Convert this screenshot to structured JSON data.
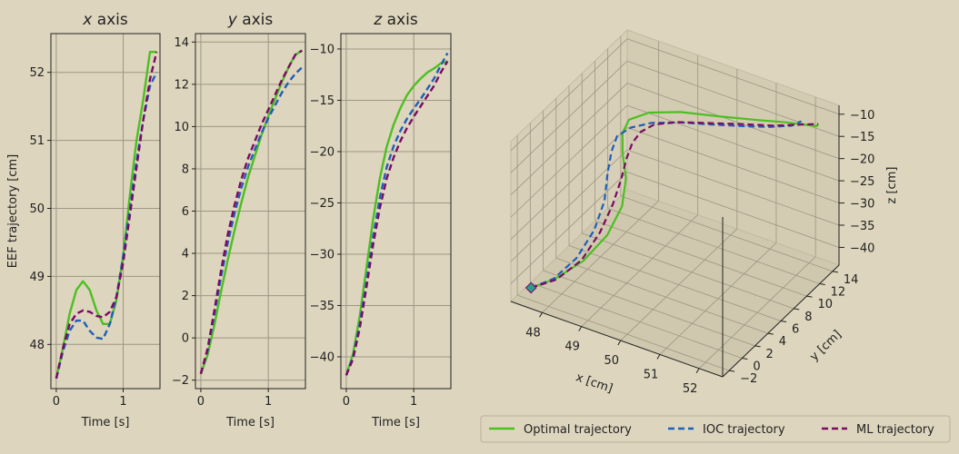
{
  "colors": {
    "background": "#ddd5bd",
    "panel": "#ddd5bd",
    "grid": "#9d9683",
    "optimal": "#4dbf21",
    "ioc": "#1e5fb8",
    "ml": "#7a0a62"
  },
  "legend": {
    "placement": "bottom-right",
    "items": [
      {
        "key": "optimal",
        "label": "Optimal trajectory",
        "style": "solid"
      },
      {
        "key": "ioc",
        "label": "IOC trajectory",
        "style": "dashed"
      },
      {
        "key": "ml",
        "label": "ML trajectory",
        "style": "dashed"
      }
    ]
  },
  "chart_data": [
    {
      "type": "line",
      "title_var": "x",
      "title_rest": " axis",
      "xlabel": "Time [s]",
      "ylabel": "EEF trajectory [cm]",
      "xlim": [
        -0.08,
        1.55
      ],
      "ylim": [
        47.35,
        52.57
      ],
      "xticks": [
        0,
        1
      ],
      "yticks": [
        48,
        49,
        50,
        51,
        52
      ],
      "grid": true,
      "series": [
        {
          "key": "optimal",
          "x": [
            0,
            0.1,
            0.2,
            0.3,
            0.4,
            0.5,
            0.6,
            0.7,
            0.8,
            0.9,
            1.0,
            1.1,
            1.2,
            1.3,
            1.4,
            1.5
          ],
          "y": [
            47.5,
            47.95,
            48.45,
            48.8,
            48.93,
            48.8,
            48.5,
            48.3,
            48.3,
            48.65,
            49.3,
            50.2,
            51.0,
            51.6,
            52.3,
            52.3
          ]
        },
        {
          "key": "ioc",
          "x": [
            0,
            0.1,
            0.2,
            0.3,
            0.4,
            0.5,
            0.6,
            0.7,
            0.8,
            0.9,
            1.0,
            1.1,
            1.2,
            1.3,
            1.4,
            1.5
          ],
          "y": [
            47.5,
            47.9,
            48.2,
            48.35,
            48.35,
            48.2,
            48.1,
            48.08,
            48.3,
            48.7,
            49.3,
            50.0,
            50.7,
            51.3,
            51.8,
            52.0
          ]
        },
        {
          "key": "ml",
          "x": [
            0,
            0.1,
            0.2,
            0.3,
            0.4,
            0.5,
            0.6,
            0.7,
            0.8,
            0.9,
            1.0,
            1.1,
            1.2,
            1.3,
            1.4,
            1.5
          ],
          "y": [
            47.5,
            47.95,
            48.3,
            48.45,
            48.5,
            48.48,
            48.42,
            48.4,
            48.48,
            48.7,
            49.2,
            49.9,
            50.6,
            51.3,
            51.9,
            52.3
          ]
        }
      ]
    },
    {
      "type": "line",
      "title_var": "y",
      "title_rest": " axis",
      "xlabel": "Time [s]",
      "ylabel": "",
      "xlim": [
        -0.08,
        1.55
      ],
      "ylim": [
        -2.4,
        14.4
      ],
      "xticks": [
        0,
        1
      ],
      "yticks": [
        -2,
        0,
        2,
        4,
        6,
        8,
        10,
        12,
        14
      ],
      "grid": true,
      "series": [
        {
          "key": "optimal",
          "x": [
            0,
            0.1,
            0.2,
            0.3,
            0.4,
            0.5,
            0.6,
            0.7,
            0.8,
            0.9,
            1.0,
            1.1,
            1.2,
            1.3,
            1.4,
            1.5
          ],
          "y": [
            -1.7,
            -0.8,
            0.6,
            2.2,
            3.7,
            5.1,
            6.4,
            7.6,
            8.6,
            9.6,
            10.5,
            11.3,
            12.1,
            12.8,
            13.4,
            13.6
          ]
        },
        {
          "key": "ioc",
          "x": [
            0,
            0.1,
            0.2,
            0.3,
            0.4,
            0.5,
            0.6,
            0.7,
            0.8,
            0.9,
            1.0,
            1.1,
            1.2,
            1.3,
            1.4,
            1.5
          ],
          "y": [
            -1.7,
            -0.6,
            1.1,
            2.9,
            4.5,
            5.9,
            7.1,
            8.1,
            8.9,
            9.7,
            10.4,
            11.0,
            11.6,
            12.1,
            12.5,
            12.8
          ]
        },
        {
          "key": "ml",
          "x": [
            0,
            0.1,
            0.2,
            0.3,
            0.4,
            0.5,
            0.6,
            0.7,
            0.8,
            0.9,
            1.0,
            1.1,
            1.2,
            1.3,
            1.4,
            1.5
          ],
          "y": [
            -1.7,
            -0.5,
            1.3,
            3.2,
            4.9,
            6.3,
            7.5,
            8.5,
            9.3,
            10.1,
            10.8,
            11.5,
            12.2,
            12.8,
            13.4,
            13.6
          ]
        }
      ]
    },
    {
      "type": "line",
      "title_var": "z",
      "title_rest": " axis",
      "xlabel": "Time [s]",
      "ylabel": "",
      "xlim": [
        -0.08,
        1.55
      ],
      "ylim": [
        -43.1,
        -8.5
      ],
      "xticks": [
        0,
        1
      ],
      "yticks": [
        -40,
        -35,
        -30,
        -25,
        -20,
        -15,
        -10
      ],
      "grid": true,
      "series": [
        {
          "key": "optimal",
          "x": [
            0,
            0.1,
            0.2,
            0.3,
            0.4,
            0.5,
            0.6,
            0.7,
            0.8,
            0.9,
            1.0,
            1.1,
            1.2,
            1.3,
            1.4,
            1.5
          ],
          "y": [
            -41.8,
            -39.7,
            -36.0,
            -31.3,
            -26.5,
            -22.5,
            -19.5,
            -17.4,
            -15.8,
            -14.5,
            -13.6,
            -12.9,
            -12.3,
            -11.9,
            -11.4,
            -11.2
          ]
        },
        {
          "key": "ioc",
          "x": [
            0,
            0.1,
            0.2,
            0.3,
            0.4,
            0.5,
            0.6,
            0.7,
            0.8,
            0.9,
            1.0,
            1.1,
            1.2,
            1.3,
            1.4,
            1.5
          ],
          "y": [
            -41.8,
            -40.0,
            -36.8,
            -32.6,
            -28.2,
            -24.4,
            -21.5,
            -19.5,
            -18.0,
            -16.8,
            -15.8,
            -14.9,
            -13.9,
            -12.9,
            -11.6,
            -10.4
          ]
        },
        {
          "key": "ml",
          "x": [
            0,
            0.1,
            0.2,
            0.3,
            0.4,
            0.5,
            0.6,
            0.7,
            0.8,
            0.9,
            1.0,
            1.1,
            1.2,
            1.3,
            1.4,
            1.5
          ],
          "y": [
            -41.8,
            -40.2,
            -37.2,
            -33.2,
            -29.0,
            -25.4,
            -22.6,
            -20.6,
            -19.0,
            -17.7,
            -16.6,
            -15.6,
            -14.6,
            -13.6,
            -12.3,
            -11.2
          ]
        }
      ]
    },
    {
      "type": "line3d",
      "xlabel": "x [cm]",
      "ylabel": "y [cm]",
      "zlabel": "z [cm]",
      "xticks": [
        48,
        49,
        50,
        51,
        52
      ],
      "yticks": [
        -2,
        0,
        2,
        4,
        6,
        8,
        10,
        12,
        14
      ],
      "zticks": [
        -10,
        -15,
        -20,
        -25,
        -30,
        -35,
        -40
      ],
      "grid": true,
      "start_marker": {
        "x": 47.5,
        "y": -1.7,
        "z": -41.8
      },
      "series": [
        {
          "key": "optimal",
          "x": [
            47.5,
            47.95,
            48.45,
            48.8,
            48.93,
            48.8,
            48.5,
            48.3,
            48.3,
            48.65,
            49.3,
            50.2,
            51.0,
            51.6,
            52.3,
            52.3
          ],
          "y": [
            -1.7,
            -0.8,
            0.6,
            2.2,
            3.7,
            5.1,
            6.4,
            7.6,
            8.6,
            9.6,
            10.5,
            11.3,
            12.1,
            12.8,
            13.4,
            13.6
          ],
          "z": [
            -41.8,
            -39.7,
            -36.0,
            -31.3,
            -26.5,
            -22.5,
            -19.5,
            -17.4,
            -15.8,
            -14.5,
            -13.6,
            -12.9,
            -12.3,
            -11.9,
            -11.4,
            -11.2
          ]
        },
        {
          "key": "ioc",
          "x": [
            47.5,
            47.9,
            48.2,
            48.35,
            48.35,
            48.2,
            48.1,
            48.08,
            48.3,
            48.7,
            49.3,
            50.0,
            50.7,
            51.3,
            51.8,
            52.0
          ],
          "y": [
            -1.7,
            -0.6,
            1.1,
            2.9,
            4.5,
            5.9,
            7.1,
            8.1,
            8.9,
            9.7,
            10.4,
            11.0,
            11.6,
            12.1,
            12.5,
            12.8
          ],
          "z": [
            -41.8,
            -40.0,
            -36.8,
            -32.6,
            -28.2,
            -24.4,
            -21.5,
            -19.5,
            -18.0,
            -16.8,
            -15.8,
            -14.9,
            -13.9,
            -12.9,
            -11.6,
            -10.4
          ]
        },
        {
          "key": "ml",
          "x": [
            47.5,
            47.95,
            48.3,
            48.45,
            48.5,
            48.48,
            48.42,
            48.4,
            48.48,
            48.7,
            49.2,
            49.9,
            50.6,
            51.3,
            51.9,
            52.3
          ],
          "y": [
            -1.7,
            -0.5,
            1.3,
            3.2,
            4.9,
            6.3,
            7.5,
            8.5,
            9.3,
            10.1,
            10.8,
            11.5,
            12.2,
            12.8,
            13.4,
            13.6
          ],
          "z": [
            -41.8,
            -40.2,
            -37.2,
            -33.2,
            -29.0,
            -25.4,
            -22.6,
            -20.6,
            -19.0,
            -17.7,
            -16.6,
            -15.6,
            -14.6,
            -13.6,
            -12.3,
            -11.2
          ]
        }
      ]
    }
  ]
}
